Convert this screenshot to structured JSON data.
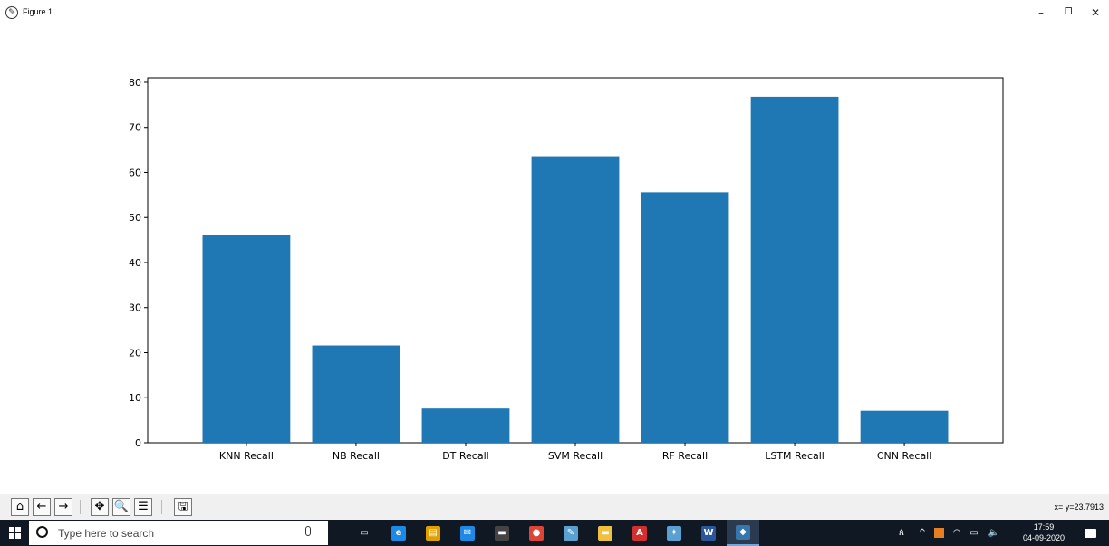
{
  "window": {
    "title": "Figure 1",
    "controls": {
      "minimize": "–",
      "restore": "❐",
      "close": "✕"
    }
  },
  "chart_data": {
    "type": "bar",
    "categories": [
      "KNN Recall",
      "NB Recall",
      "DT Recall",
      "SVM Recall",
      "RF Recall",
      "LSTM Recall",
      "CNN Recall"
    ],
    "values": [
      46.1,
      21.6,
      7.6,
      63.6,
      55.6,
      76.8,
      7.1
    ],
    "title": "",
    "xlabel": "",
    "ylabel": "",
    "ylim": [
      0,
      81
    ],
    "yticks": [
      0,
      10,
      20,
      30,
      40,
      50,
      60,
      70,
      80
    ],
    "grid": false,
    "bar_color": "#1f77b4"
  },
  "toolbar": {
    "buttons": [
      {
        "name": "home-icon",
        "glyph": "⌂"
      },
      {
        "name": "back-arrow-icon",
        "glyph": "←"
      },
      {
        "name": "forward-arrow-icon",
        "glyph": "→"
      },
      {
        "name": "pan-icon",
        "glyph": "✥"
      },
      {
        "name": "zoom-icon",
        "glyph": "🔍"
      },
      {
        "name": "configure-subplots-icon",
        "glyph": "☰"
      },
      {
        "name": "save-icon",
        "glyph": "🖫"
      }
    ],
    "coordinates": "x= y=23.7913"
  },
  "taskbar": {
    "search_placeholder": "Type here to search",
    "apps": [
      {
        "name": "task-view-icon",
        "glyph": "▭",
        "color": "#101824"
      },
      {
        "name": "edge-icon",
        "glyph": "e",
        "color": "#1e88e5"
      },
      {
        "name": "store-icon",
        "glyph": "▤",
        "color": "#e0a000"
      },
      {
        "name": "mail-icon",
        "glyph": "✉",
        "color": "#1e88e5"
      },
      {
        "name": "terminal-icon",
        "glyph": "▬",
        "color": "#444444"
      },
      {
        "name": "chrome-icon",
        "glyph": "●",
        "color": "#db4437"
      },
      {
        "name": "notepad-icon",
        "glyph": "✎",
        "color": "#5aa0d0"
      },
      {
        "name": "file-explorer-icon",
        "glyph": "▬",
        "color": "#f0c040"
      },
      {
        "name": "acrobat-icon",
        "glyph": "A",
        "color": "#d32f2f"
      },
      {
        "name": "paint-icon",
        "glyph": "✦",
        "color": "#5aa0d0"
      },
      {
        "name": "word-icon",
        "glyph": "W",
        "color": "#2b579a"
      },
      {
        "name": "python-icon",
        "glyph": "◆",
        "color": "#3776ab"
      }
    ],
    "tray": {
      "people": "ጰ",
      "chevron": "^",
      "wifi": "◠",
      "battery": "▭",
      "volume": "🔈"
    },
    "clock_time": "17:59",
    "clock_date": "04-09-2020"
  }
}
